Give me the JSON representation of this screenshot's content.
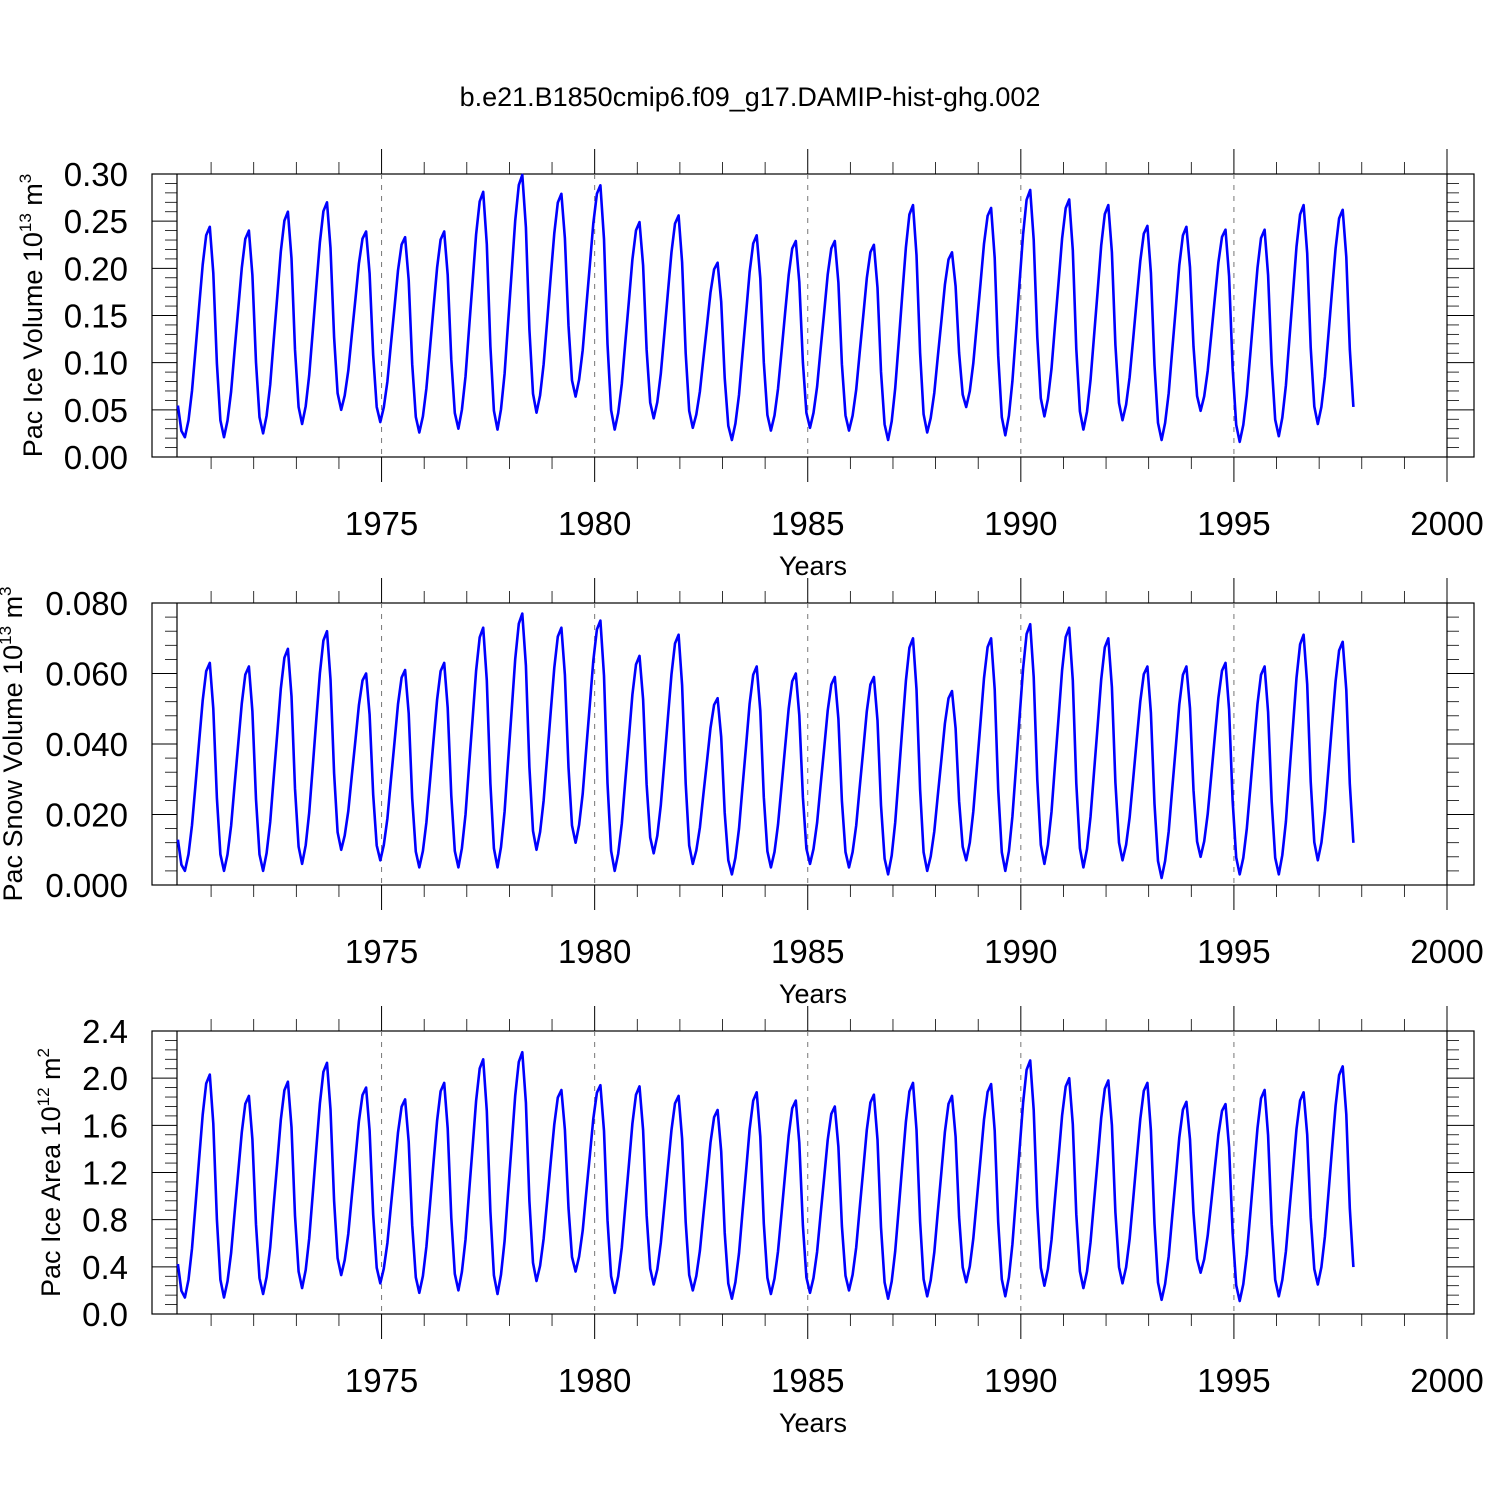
{
  "title": "b.e21.B1850cmip6.f09_g17.DAMIP-hist-ghg.002",
  "chart_data": [
    {
      "type": "line",
      "ylabel_main": "Pac Ice Volume 10",
      "ylabel_exp": "13",
      "ylabel_unit": " m",
      "ylabel_unit_exp": "3",
      "xlabel": "Years",
      "ylim": [
        0,
        0.3
      ],
      "xlim": [
        1970.2,
        2000
      ],
      "yticks": [
        0,
        0.05,
        0.1,
        0.15,
        0.2,
        0.25,
        0.3
      ],
      "ytick_labels": [
        "0.00",
        "0.05",
        "0.10",
        "0.15",
        "0.20",
        "0.25",
        "0.30"
      ],
      "xticks": [
        1975,
        1980,
        1985,
        1990,
        1995,
        2000
      ],
      "xtick_labels": [
        "1975",
        "1980",
        "1985",
        "1990",
        "1995",
        "2000"
      ],
      "series": [
        {
          "name": "Pac Ice Volume",
          "color": "#0000ff",
          "peaks": [
            0.244,
            0.24,
            0.26,
            0.27,
            0.239,
            0.233,
            0.239,
            0.281,
            0.299,
            0.279,
            0.288,
            0.249,
            0.256,
            0.206,
            0.235,
            0.229,
            0.229,
            0.225,
            0.267,
            0.217,
            0.264,
            0.283,
            0.273,
            0.267,
            0.245,
            0.244,
            0.241,
            0.241,
            0.267,
            0.262
          ],
          "troughs": [
            0.021,
            0.025,
            0.035,
            0.05,
            0.037,
            0.026,
            0.03,
            0.029,
            0.047,
            0.064,
            0.029,
            0.041,
            0.031,
            0.018,
            0.028,
            0.031,
            0.028,
            0.018,
            0.026,
            0.053,
            0.023,
            0.043,
            0.029,
            0.039,
            0.018,
            0.049,
            0.016,
            0.022,
            0.035
          ]
        }
      ]
    },
    {
      "type": "line",
      "ylabel_main": "Pac Snow Volume 10",
      "ylabel_exp": "13",
      "ylabel_unit": " m",
      "ylabel_unit_exp": "3",
      "xlabel": "Years",
      "ylim": [
        0,
        0.08
      ],
      "xlim": [
        1970.2,
        2000
      ],
      "yticks": [
        0,
        0.02,
        0.04,
        0.06,
        0.08
      ],
      "ytick_labels": [
        "0.000",
        "0.020",
        "0.040",
        "0.060",
        "0.080"
      ],
      "xticks": [
        1975,
        1980,
        1985,
        1990,
        1995,
        2000
      ],
      "xtick_labels": [
        "1975",
        "1980",
        "1985",
        "1990",
        "1995",
        "2000"
      ],
      "series": [
        {
          "name": "Pac Snow Volume",
          "color": "#0000ff",
          "peaks": [
            0.063,
            0.062,
            0.067,
            0.072,
            0.06,
            0.061,
            0.063,
            0.073,
            0.077,
            0.073,
            0.075,
            0.065,
            0.071,
            0.053,
            0.062,
            0.06,
            0.059,
            0.059,
            0.07,
            0.055,
            0.07,
            0.074,
            0.073,
            0.07,
            0.062,
            0.062,
            0.063,
            0.062,
            0.071,
            0.069
          ],
          "troughs": [
            0.004,
            0.004,
            0.006,
            0.01,
            0.007,
            0.005,
            0.005,
            0.005,
            0.01,
            0.012,
            0.004,
            0.009,
            0.006,
            0.003,
            0.005,
            0.006,
            0.005,
            0.003,
            0.004,
            0.007,
            0.004,
            0.006,
            0.005,
            0.007,
            0.002,
            0.008,
            0.003,
            0.003,
            0.007
          ]
        }
      ]
    },
    {
      "type": "line",
      "ylabel_main": "Pac Ice Area 10",
      "ylabel_exp": "12",
      "ylabel_unit": " m",
      "ylabel_unit_exp": "2",
      "xlabel": "Years",
      "ylim": [
        0,
        2.4
      ],
      "xlim": [
        1970.2,
        2000
      ],
      "yticks": [
        0,
        0.4,
        0.8,
        1.2,
        1.6,
        2.0,
        2.4
      ],
      "ytick_labels": [
        "0.0",
        "0.4",
        "0.8",
        "1.2",
        "1.6",
        "2.0",
        "2.4"
      ],
      "xticks": [
        1975,
        1980,
        1985,
        1990,
        1995,
        2000
      ],
      "xtick_labels": [
        "1975",
        "1980",
        "1985",
        "1990",
        "1995",
        "2000"
      ],
      "series": [
        {
          "name": "Pac Ice Area",
          "color": "#0000ff",
          "peaks": [
            2.03,
            1.85,
            1.97,
            2.13,
            1.92,
            1.82,
            1.96,
            2.16,
            2.22,
            1.9,
            1.94,
            1.93,
            1.85,
            1.73,
            1.88,
            1.81,
            1.76,
            1.86,
            1.96,
            1.85,
            1.95,
            2.15,
            2.0,
            1.98,
            1.96,
            1.8,
            1.78,
            1.9,
            1.88,
            2.1
          ],
          "troughs": [
            0.14,
            0.17,
            0.22,
            0.33,
            0.26,
            0.18,
            0.2,
            0.17,
            0.28,
            0.36,
            0.18,
            0.25,
            0.2,
            0.13,
            0.17,
            0.18,
            0.2,
            0.13,
            0.15,
            0.27,
            0.15,
            0.24,
            0.22,
            0.26,
            0.12,
            0.35,
            0.11,
            0.15,
            0.25
          ]
        }
      ]
    }
  ]
}
